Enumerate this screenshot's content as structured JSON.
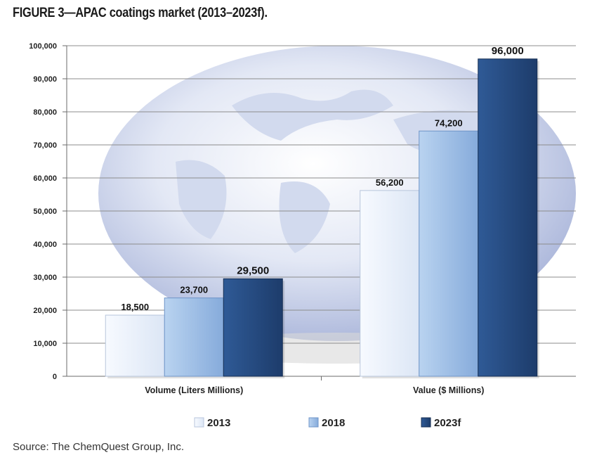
{
  "figure": {
    "title": "FIGURE 3—APAC coatings market (2013–2023f).",
    "source": "Source: The ChemQuest Group, Inc."
  },
  "colors": {
    "series_2013": "#e6eef9",
    "series_2018": "#9fc0e6",
    "series_2023f": "#25497e",
    "grid": "#8c8c8c",
    "globe": "#c5d0ea"
  },
  "chart_data": {
    "type": "bar",
    "categories": [
      "Volume (Liters Millions)",
      "Value ($ Millions)"
    ],
    "series": [
      {
        "name": "2013",
        "values": [
          18500,
          56200
        ],
        "labels": [
          "18,500",
          "56,200"
        ]
      },
      {
        "name": "2018",
        "values": [
          23700,
          74200
        ],
        "labels": [
          "23,700",
          "74,200"
        ]
      },
      {
        "name": "2023f",
        "values": [
          29500,
          96000
        ],
        "labels": [
          "29,500",
          "96,000"
        ]
      }
    ],
    "ylim": [
      0,
      100000
    ],
    "yticks": [
      0,
      10000,
      20000,
      30000,
      40000,
      50000,
      60000,
      70000,
      80000,
      90000,
      100000
    ],
    "ytick_labels": [
      "0",
      "10,000",
      "20,000",
      "30,000",
      "40,000",
      "50,000",
      "60,000",
      "70,000",
      "80,000",
      "90,000",
      "100,000"
    ],
    "grid": true,
    "legend_position": "bottom",
    "xlabel": "",
    "ylabel": ""
  }
}
